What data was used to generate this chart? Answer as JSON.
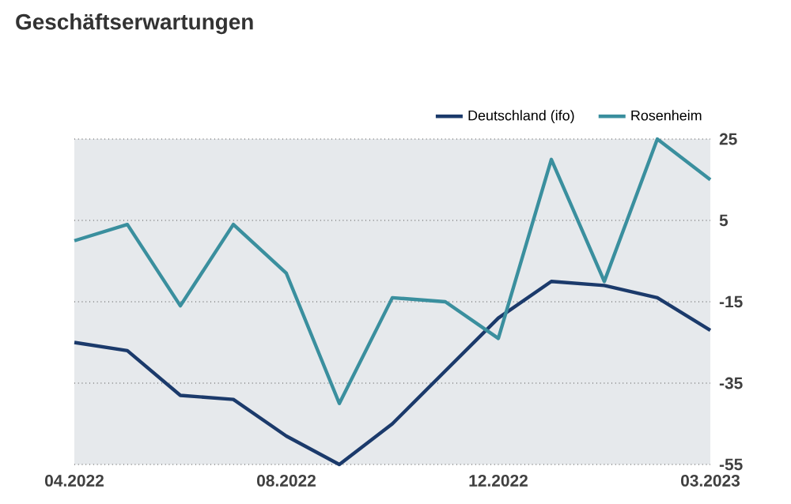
{
  "chart_data": {
    "type": "line",
    "title": "Geschäftserwartungen",
    "categories": [
      "04.2022",
      null,
      null,
      null,
      "08.2022",
      null,
      null,
      null,
      "12.2022",
      null,
      null,
      null,
      "03.2023"
    ],
    "series": [
      {
        "name": "Deutschland (ifo)",
        "color": "#1b3a6b",
        "values": [
          -25,
          -27,
          -38,
          -39,
          -48,
          -55,
          -45,
          -32,
          -19,
          -10,
          -11,
          -14,
          -22
        ]
      },
      {
        "name": "Rosenheim",
        "color": "#3a8f9e",
        "values": [
          0,
          4,
          -16,
          4,
          -8,
          -40,
          -14,
          -15,
          -24,
          20,
          -10,
          25,
          15
        ]
      }
    ],
    "ylim": [
      -55,
      25
    ],
    "yticks": [
      -55,
      -35,
      -15,
      5,
      25
    ],
    "grid": "y",
    "legend": "top right",
    "marker": "none",
    "line_style": "solid"
  }
}
